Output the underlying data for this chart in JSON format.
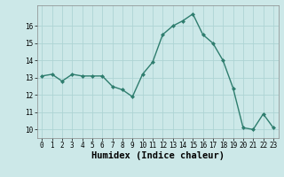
{
  "x": [
    0,
    1,
    2,
    3,
    4,
    5,
    6,
    7,
    8,
    9,
    10,
    11,
    12,
    13,
    14,
    15,
    16,
    17,
    18,
    19,
    20,
    21,
    22,
    23
  ],
  "y": [
    13.1,
    13.2,
    12.8,
    13.2,
    13.1,
    13.1,
    13.1,
    12.5,
    12.3,
    11.9,
    13.2,
    13.9,
    15.5,
    16.0,
    16.3,
    16.7,
    15.5,
    15.0,
    14.0,
    12.4,
    10.1,
    10.0,
    10.9,
    10.1
  ],
  "xlabel": "Humidex (Indice chaleur)",
  "line_color": "#2e7d6e",
  "bg_color": "#cce8e8",
  "grid_color": "#aed4d4",
  "xlim": [
    -0.5,
    23.5
  ],
  "ylim": [
    9.5,
    17.2
  ],
  "yticks": [
    10,
    11,
    12,
    13,
    14,
    15,
    16
  ],
  "xticks": [
    0,
    1,
    2,
    3,
    4,
    5,
    6,
    7,
    8,
    9,
    10,
    11,
    12,
    13,
    14,
    15,
    16,
    17,
    18,
    19,
    20,
    21,
    22,
    23
  ],
  "marker": "D",
  "marker_size": 2.0,
  "line_width": 1.0,
  "tick_fontsize": 5.5,
  "xlabel_fontsize": 7.5
}
